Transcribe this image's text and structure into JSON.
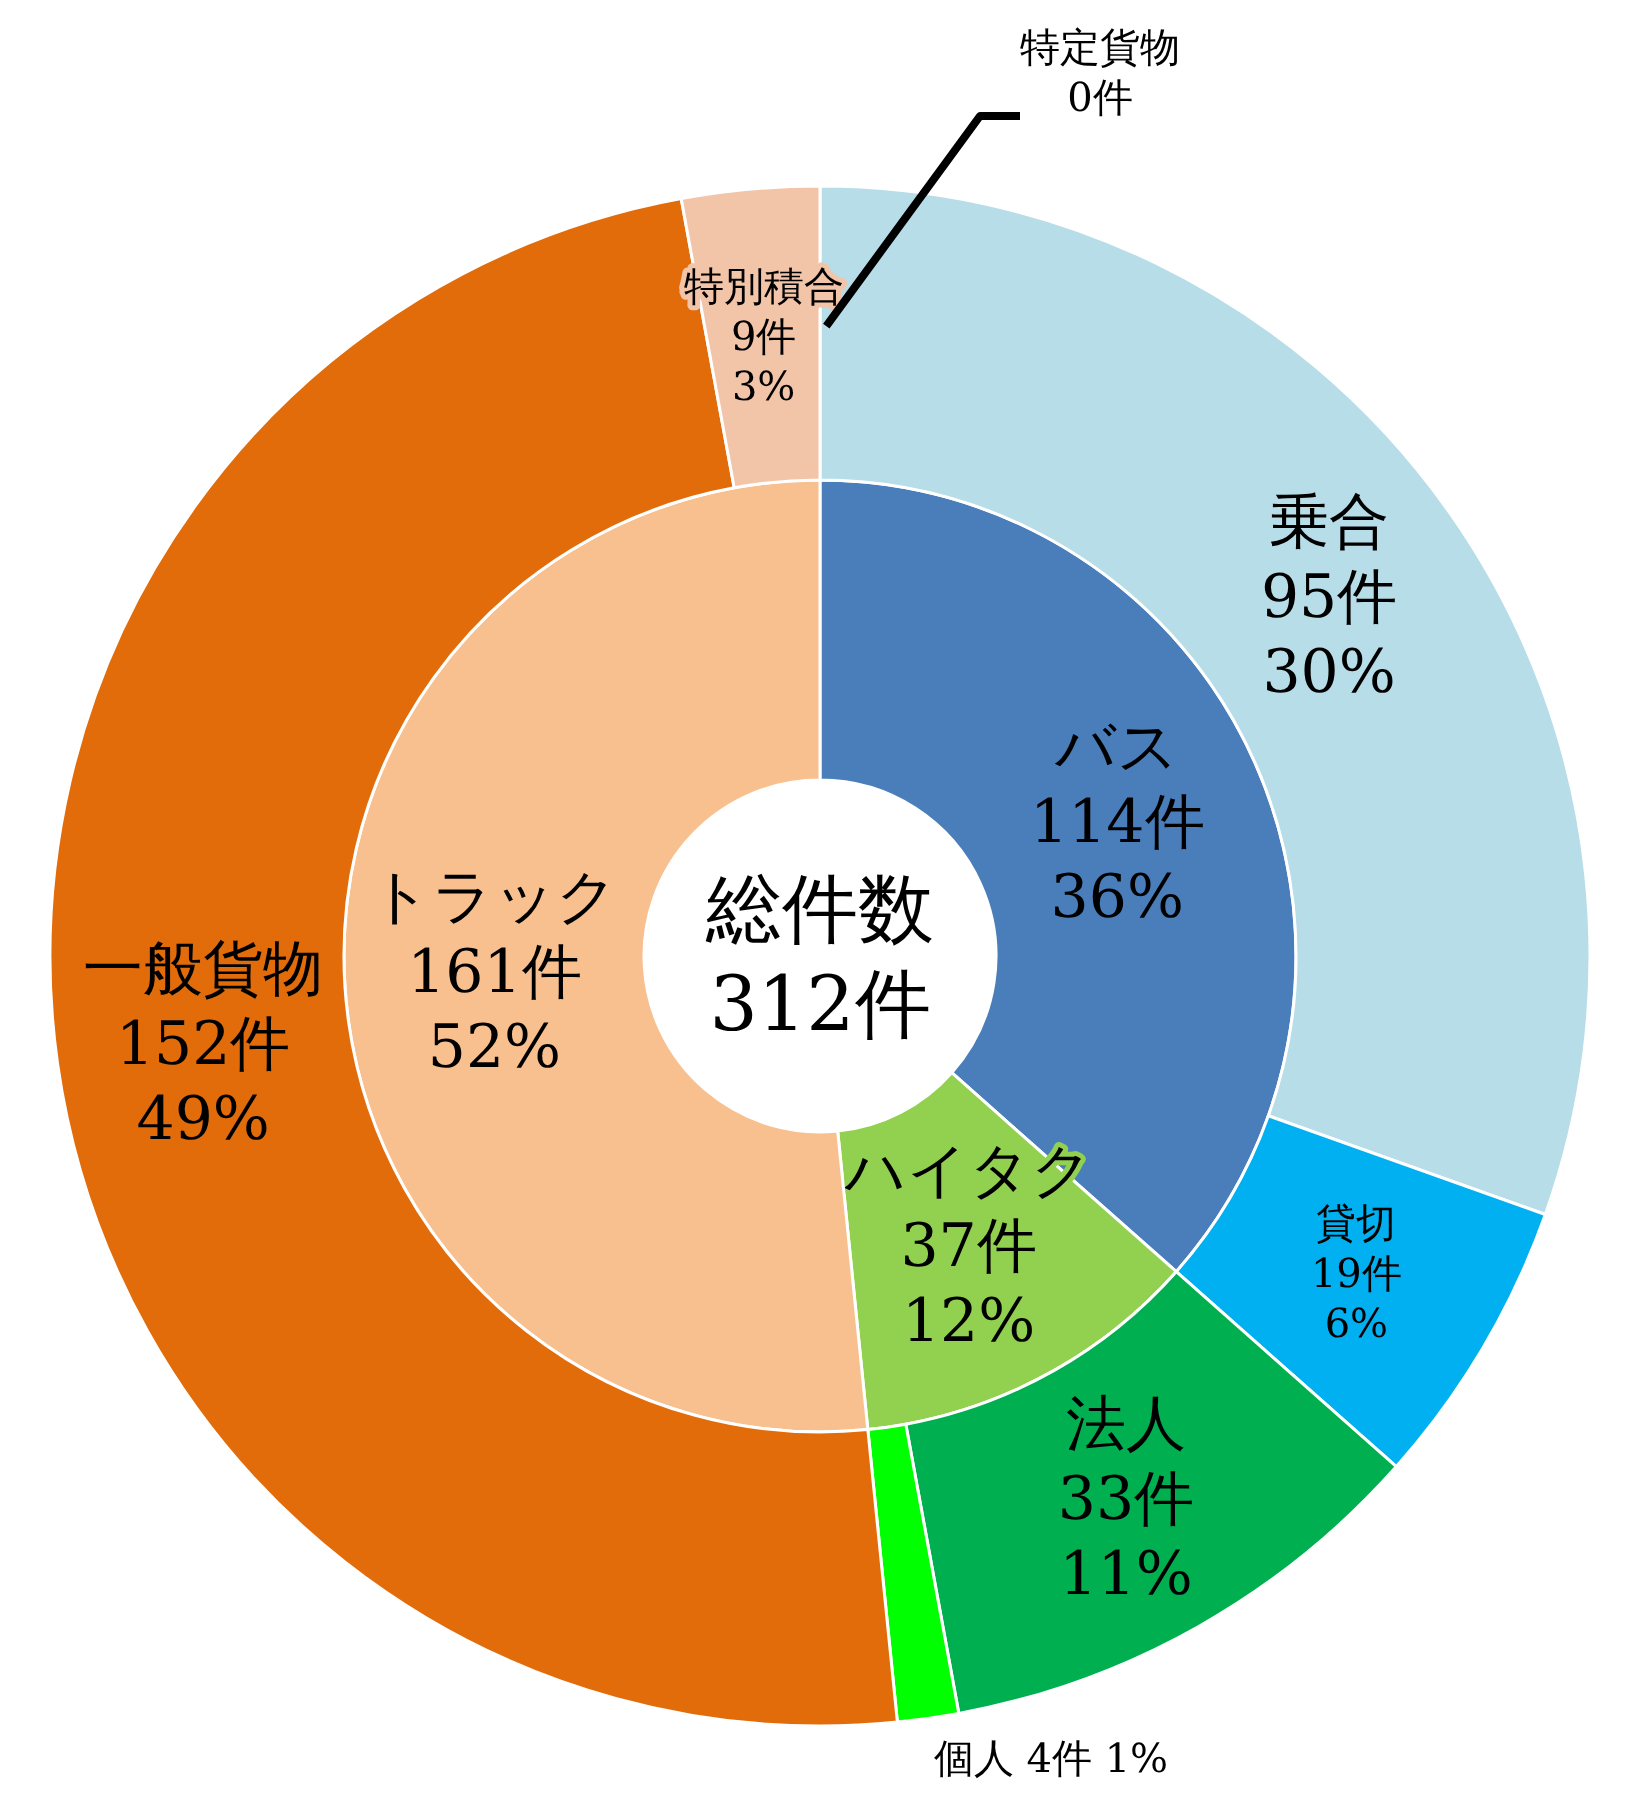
{
  "chart_data": [
    {
      "type": "donut",
      "categories": [
        "バス",
        "ハイタク",
        "トラック"
      ],
      "values": [
        114,
        37,
        161
      ],
      "value_labels": [
        "114件\n36%",
        "37件\n12%",
        "161件\n52%"
      ],
      "colors": [
        "#4a7ebb",
        "#92d050",
        "#f9c08f"
      ],
      "annotations": [
        "総件数\n312件"
      ]
    },
    {
      "type": "donut",
      "categories": [
        "乗合",
        "貸切",
        "法人",
        "個人",
        "一般貨物",
        "特別積合",
        "特定貨物"
      ],
      "values": [
        95,
        19,
        33,
        4,
        152,
        9,
        0
      ],
      "value_labels": [
        "95件\n30%",
        "19件\n6%",
        "33件\n11%",
        "4件 1%",
        "152件\n49%",
        "9件\n3%",
        "0件"
      ],
      "colors": [
        "#b7dde8",
        "#00b0f0",
        "#00b050",
        "#00ff00",
        "#e26b0a",
        "#f2c4a8",
        "#d9d9d9"
      ]
    }
  ]
}
